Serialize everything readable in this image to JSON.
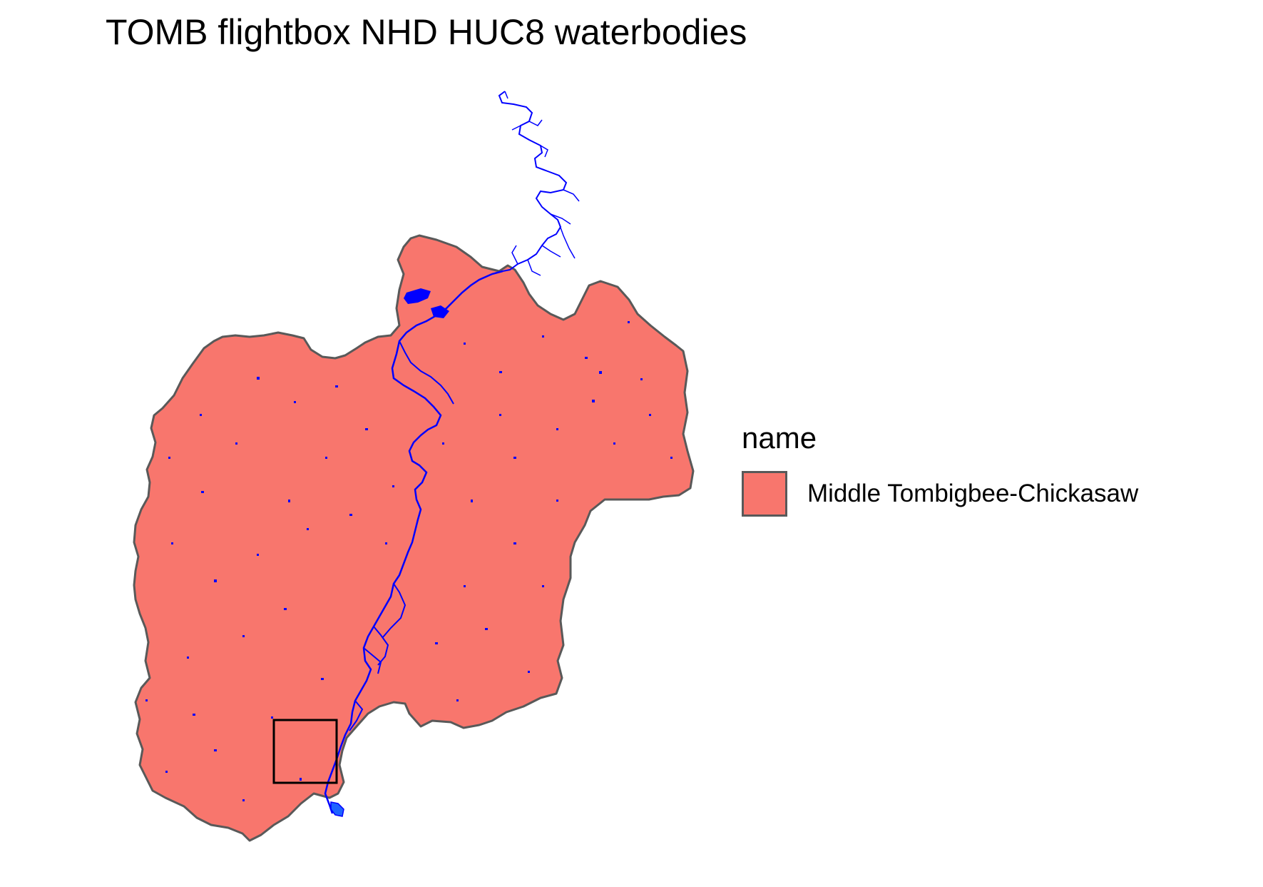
{
  "title": "TOMB flightbox NHD HUC8 waterbodies",
  "legend": {
    "title": "name",
    "items": [
      {
        "label": "Middle Tombigbee-Chickasaw",
        "fill": "#F8766D"
      }
    ]
  },
  "colors": {
    "basin_fill": "#F8766D",
    "basin_outline": "#595959",
    "water": "#0000FF",
    "flightbox": "#000000"
  }
}
